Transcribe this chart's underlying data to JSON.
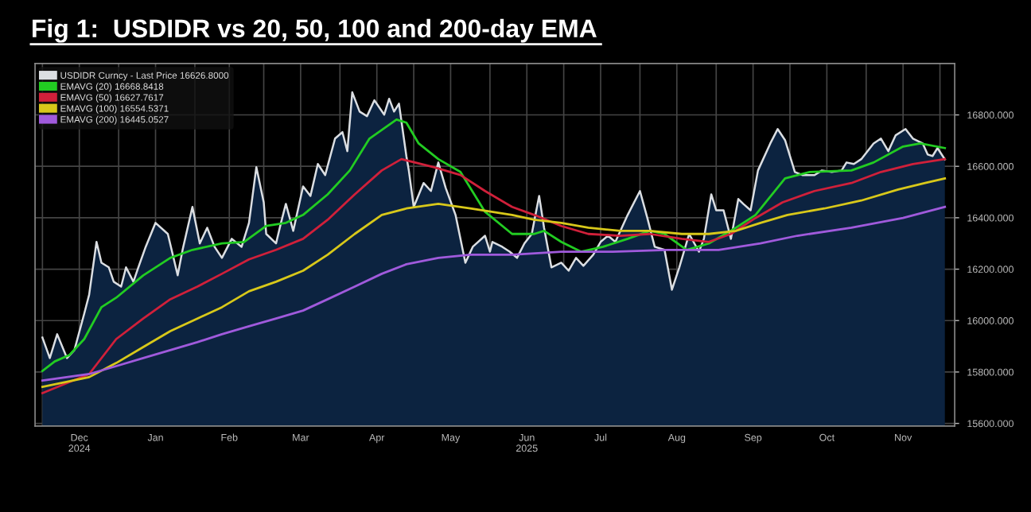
{
  "chart_data": {
    "type": "line",
    "title": "Fig 1:  USDIDR vs 20, 50, 100 and 200-day EMA",
    "xlim": [
      "2024-11-28",
      "2025-12-07"
    ],
    "ylim": [
      15590,
      17000
    ],
    "yticks": [
      {
        "value": 15600,
        "label": "15600.000"
      },
      {
        "value": 15800,
        "label": "15800.000"
      },
      {
        "value": 16000,
        "label": "16000.000"
      },
      {
        "value": 16200,
        "label": "16200.000"
      },
      {
        "value": 16400,
        "label": "16400.000"
      },
      {
        "value": 16600,
        "label": "16600.000"
      },
      {
        "value": 16800,
        "label": "16800.000"
      }
    ],
    "xticks": [
      {
        "value": "2024-12-01",
        "label": null
      },
      {
        "value": "2024-12-16",
        "label": "Dec\n2024"
      },
      {
        "value": "2025-01-01",
        "label": null
      },
      {
        "value": "2025-01-16",
        "label": "Jan"
      },
      {
        "value": "2025-02-01",
        "label": null
      },
      {
        "value": "2025-02-15",
        "label": "Feb"
      },
      {
        "value": "2025-03-01",
        "label": null
      },
      {
        "value": "2025-03-16",
        "label": "Mar"
      },
      {
        "value": "2025-04-01",
        "label": null
      },
      {
        "value": "2025-04-16",
        "label": "Apr"
      },
      {
        "value": "2025-05-01",
        "label": null
      },
      {
        "value": "2025-05-16",
        "label": "May"
      },
      {
        "value": "2025-06-01",
        "label": null
      },
      {
        "value": "2025-06-16",
        "label": "Jun\n2025"
      },
      {
        "value": "2025-07-01",
        "label": null
      },
      {
        "value": "2025-07-16",
        "label": "Jul"
      },
      {
        "value": "2025-08-01",
        "label": null
      },
      {
        "value": "2025-08-16",
        "label": "Aug"
      },
      {
        "value": "2025-09-01",
        "label": null
      },
      {
        "value": "2025-09-16",
        "label": "Sep"
      },
      {
        "value": "2025-10-01",
        "label": null
      },
      {
        "value": "2025-10-16",
        "label": "Oct"
      },
      {
        "value": "2025-11-01",
        "label": null
      },
      {
        "value": "2025-11-16",
        "label": "Nov"
      },
      {
        "value": "2025-12-01",
        "label": null
      }
    ],
    "grid": true,
    "legend": "top left",
    "series": [
      {
        "name": "USDIDR Curncy - Last Price 16626.8000",
        "type": "area",
        "color": "#0c2340",
        "x": [
          "2024-12-01",
          "2024-12-04",
          "2024-12-07",
          "2024-12-11",
          "2024-12-14",
          "2024-12-18",
          "2024-12-20",
          "2024-12-23",
          "2024-12-25",
          "2024-12-28",
          "2024-12-30",
          "2025-01-02",
          "2025-01-04",
          "2025-01-07",
          "2025-01-09",
          "2025-01-12",
          "2025-01-16",
          "2025-01-21",
          "2025-01-25",
          "2025-01-27",
          "2025-01-31",
          "2025-02-03",
          "2025-02-06",
          "2025-02-09",
          "2025-02-12",
          "2025-02-16",
          "2025-02-20",
          "2025-02-23",
          "2025-02-26",
          "2025-03-01",
          "2025-03-02",
          "2025-03-06",
          "2025-03-08",
          "2025-03-10",
          "2025-03-13",
          "2025-03-17",
          "2025-03-20",
          "2025-03-23",
          "2025-03-26",
          "2025-03-30",
          "2025-04-02",
          "2025-04-04",
          "2025-04-06",
          "2025-04-09",
          "2025-04-12",
          "2025-04-15",
          "2025-04-19",
          "2025-04-21",
          "2025-04-23",
          "2025-04-25",
          "2025-04-28",
          "2025-04-29",
          "2025-05-01",
          "2025-05-05",
          "2025-05-08",
          "2025-05-11",
          "2025-05-14",
          "2025-05-18",
          "2025-05-22",
          "2025-05-25",
          "2025-05-30",
          "2025-06-01",
          "2025-06-02",
          "2025-06-06",
          "2025-06-09",
          "2025-06-12",
          "2025-06-15",
          "2025-06-18",
          "2025-06-21",
          "2025-06-23",
          "2025-06-26",
          "2025-06-30",
          "2025-07-03",
          "2025-07-06",
          "2025-07-09",
          "2025-07-13",
          "2025-07-16",
          "2025-07-19",
          "2025-07-22",
          "2025-07-27",
          "2025-08-01",
          "2025-08-04",
          "2025-08-07",
          "2025-08-11",
          "2025-08-14",
          "2025-08-17",
          "2025-08-21",
          "2025-08-25",
          "2025-08-27",
          "2025-08-30",
          "2025-09-01",
          "2025-09-04",
          "2025-09-07",
          "2025-09-10",
          "2025-09-12",
          "2025-09-15",
          "2025-09-18",
          "2025-09-23",
          "2025-09-26",
          "2025-09-29",
          "2025-10-03",
          "2025-10-06",
          "2025-10-11",
          "2025-10-14",
          "2025-10-18",
          "2025-10-22",
          "2025-10-24",
          "2025-10-27",
          "2025-10-30",
          "2025-11-04",
          "2025-11-07",
          "2025-11-10",
          "2025-11-13",
          "2025-11-17",
          "2025-11-20",
          "2025-11-24",
          "2025-11-26",
          "2025-11-28",
          "2025-11-30",
          "2025-12-03"
        ],
        "values": [
          15934,
          15854,
          15947,
          15854,
          15885,
          16027,
          16101,
          16306,
          16225,
          16207,
          16151,
          16132,
          16207,
          16151,
          16207,
          16287,
          16380,
          16337,
          16176,
          16275,
          16442,
          16300,
          16361,
          16287,
          16244,
          16318,
          16287,
          16380,
          16597,
          16460,
          16337,
          16300,
          16380,
          16454,
          16349,
          16522,
          16485,
          16609,
          16566,
          16708,
          16733,
          16659,
          16888,
          16813,
          16795,
          16857,
          16801,
          16863,
          16813,
          16844,
          16640,
          16584,
          16442,
          16535,
          16504,
          16615,
          16516,
          16411,
          16225,
          16287,
          16330,
          16268,
          16306,
          16287,
          16268,
          16244,
          16300,
          16337,
          16485,
          16361,
          16207,
          16225,
          16194,
          16244,
          16213,
          16256,
          16306,
          16330,
          16306,
          16411,
          16504,
          16399,
          16287,
          16275,
          16120,
          16207,
          16337,
          16268,
          16318,
          16491,
          16429,
          16429,
          16318,
          16473,
          16454,
          16429,
          16584,
          16689,
          16745,
          16702,
          16578,
          16566,
          16566,
          16584,
          16578,
          16584,
          16615,
          16609,
          16628,
          16689,
          16708,
          16659,
          16721,
          16745,
          16708,
          16689,
          16646,
          16640,
          16671,
          16627
        ]
      },
      {
        "name": "EMAVG (20) 16668.8418",
        "color": "#22cc22",
        "x": [
          "2024-12-01",
          "2024-12-06",
          "2024-12-12",
          "2024-12-18",
          "2024-12-25",
          "2024-12-31",
          "2025-01-11",
          "2025-01-22",
          "2025-01-31",
          "2025-02-12",
          "2025-02-21",
          "2025-03-02",
          "2025-03-10",
          "2025-03-17",
          "2025-03-27",
          "2025-04-05",
          "2025-04-13",
          "2025-04-24",
          "2025-04-28",
          "2025-05-03",
          "2025-05-11",
          "2025-05-20",
          "2025-05-30",
          "2025-06-10",
          "2025-06-19",
          "2025-06-23",
          "2025-06-30",
          "2025-07-08",
          "2025-07-17",
          "2025-07-27",
          "2025-08-05",
          "2025-08-11",
          "2025-08-20",
          "2025-08-29",
          "2025-09-09",
          "2025-09-17",
          "2025-09-29",
          "2025-10-09",
          "2025-10-26",
          "2025-11-04",
          "2025-11-16",
          "2025-11-23",
          "2025-12-03"
        ],
        "values": [
          15804,
          15841,
          15866,
          15928,
          16052,
          16089,
          16176,
          16244,
          16275,
          16300,
          16306,
          16368,
          16380,
          16411,
          16491,
          16584,
          16708,
          16782,
          16770,
          16689,
          16628,
          16578,
          16423,
          16337,
          16337,
          16349,
          16306,
          16268,
          16287,
          16318,
          16349,
          16337,
          16275,
          16300,
          16361,
          16411,
          16553,
          16578,
          16584,
          16615,
          16677,
          16689,
          16671
        ]
      },
      {
        "name": "EMAVG (50) 16627.7617",
        "color": "#d0203a",
        "x": [
          "2024-12-01",
          "2024-12-12",
          "2024-12-20",
          "2024-12-31",
          "2025-01-11",
          "2025-01-22",
          "2025-02-02",
          "2025-02-12",
          "2025-02-23",
          "2025-03-06",
          "2025-03-17",
          "2025-03-27",
          "2025-04-07",
          "2025-04-18",
          "2025-04-26",
          "2025-05-09",
          "2025-05-20",
          "2025-05-30",
          "2025-06-10",
          "2025-06-19",
          "2025-06-30",
          "2025-07-11",
          "2025-07-24",
          "2025-08-05",
          "2025-08-18",
          "2025-08-29",
          "2025-09-07",
          "2025-09-17",
          "2025-09-28",
          "2025-10-11",
          "2025-10-26",
          "2025-11-07",
          "2025-11-20",
          "2025-12-03"
        ],
        "values": [
          15718,
          15761,
          15792,
          15928,
          16008,
          16083,
          16132,
          16182,
          16238,
          16275,
          16318,
          16392,
          16491,
          16584,
          16628,
          16597,
          16566,
          16504,
          16442,
          16411,
          16368,
          16337,
          16330,
          16337,
          16318,
          16306,
          16337,
          16399,
          16460,
          16504,
          16535,
          16578,
          16609,
          16628
        ]
      },
      {
        "name": "EMAVG (100) 16554.5371",
        "color": "#d8c81a",
        "x": [
          "2024-12-01",
          "2024-12-20",
          "2024-12-31",
          "2025-01-11",
          "2025-01-22",
          "2025-02-02",
          "2025-02-12",
          "2025-02-23",
          "2025-03-06",
          "2025-03-17",
          "2025-03-27",
          "2025-04-07",
          "2025-04-18",
          "2025-04-28",
          "2025-05-11",
          "2025-05-24",
          "2025-06-10",
          "2025-06-19",
          "2025-06-30",
          "2025-07-11",
          "2025-07-24",
          "2025-08-05",
          "2025-08-18",
          "2025-08-29",
          "2025-09-09",
          "2025-09-19",
          "2025-09-30",
          "2025-10-15",
          "2025-10-30",
          "2025-11-14",
          "2025-11-25",
          "2025-12-03"
        ],
        "values": [
          15742,
          15780,
          15835,
          15897,
          15959,
          16008,
          16052,
          16114,
          16151,
          16194,
          16256,
          16337,
          16411,
          16436,
          16454,
          16436,
          16411,
          16392,
          16380,
          16361,
          16349,
          16349,
          16337,
          16337,
          16349,
          16380,
          16411,
          16436,
          16467,
          16510,
          16535,
          16553
        ]
      },
      {
        "name": "EMAVG (200) 16445.0527",
        "color": "#a05adc",
        "x": [
          "2024-12-01",
          "2024-12-20",
          "2024-12-31",
          "2025-01-11",
          "2025-01-22",
          "2025-02-02",
          "2025-02-12",
          "2025-02-23",
          "2025-03-06",
          "2025-03-17",
          "2025-03-27",
          "2025-04-07",
          "2025-04-18",
          "2025-04-28",
          "2025-05-11",
          "2025-05-24",
          "2025-06-10",
          "2025-06-30",
          "2025-07-21",
          "2025-08-12",
          "2025-09-02",
          "2025-09-19",
          "2025-10-04",
          "2025-10-26",
          "2025-11-16",
          "2025-12-03"
        ],
        "values": [
          15767,
          15792,
          15823,
          15854,
          15885,
          15916,
          15947,
          15978,
          16008,
          16039,
          16083,
          16132,
          16182,
          16219,
          16244,
          16256,
          16256,
          16268,
          16268,
          16275,
          16275,
          16300,
          16330,
          16361,
          16399,
          16442
        ]
      }
    ]
  }
}
